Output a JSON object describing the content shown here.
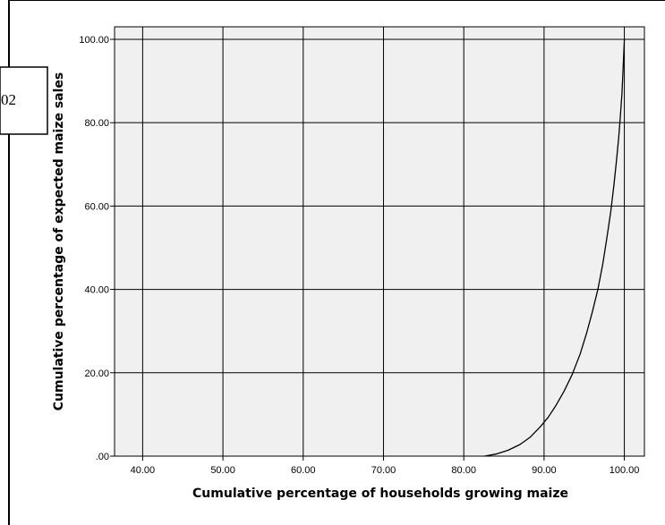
{
  "figure_tag": "02",
  "chart_data": {
    "type": "line",
    "xlabel": "Cumulative percentage of households growing maize",
    "ylabel": "Cumulative percentage of expected maize sales",
    "xlim": [
      36.5,
      102.5
    ],
    "ylim": [
      0,
      103
    ],
    "x_ticks": [
      40,
      50,
      60,
      70,
      80,
      90,
      100
    ],
    "x_tick_labels": [
      "40.00",
      "50.00",
      "60.00",
      "70.00",
      "80.00",
      "90.00",
      "100.00"
    ],
    "y_ticks": [
      0,
      20,
      40,
      60,
      80,
      100
    ],
    "y_tick_labels": [
      ".00",
      "20.00",
      "40.00",
      "60.00",
      "80.00",
      "100.00"
    ],
    "grid": true,
    "plot_background": "#f0f0f0",
    "line_color": "#000000",
    "series": [
      {
        "x": [
          82.6,
          84.0,
          85.5,
          87.0,
          88.3,
          89.5,
          90.5,
          91.5,
          92.5,
          93.5,
          94.5,
          95.3,
          96.0,
          96.7,
          97.3,
          97.8,
          98.3,
          98.7,
          99.0,
          99.3,
          99.5,
          99.7,
          99.85,
          100.0
        ],
        "y": [
          0,
          0.5,
          1.4,
          2.8,
          4.6,
          7.0,
          9.3,
          12.2,
          15.6,
          19.6,
          24.5,
          29.5,
          34.5,
          40.0,
          46.0,
          52.0,
          58.5,
          65.0,
          70.5,
          76.5,
          81.5,
          87.0,
          93.0,
          100.0
        ]
      }
    ]
  }
}
